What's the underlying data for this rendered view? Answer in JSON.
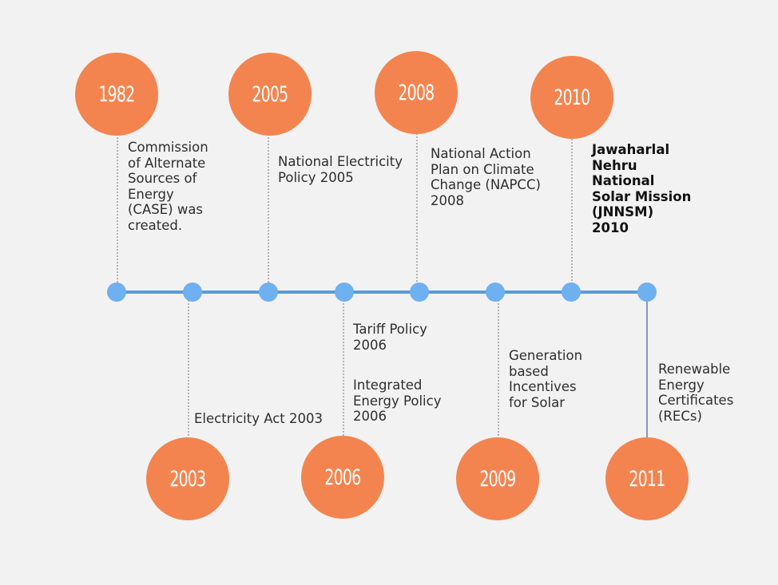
{
  "colors": {
    "circle": "#f4844f",
    "axis": "#5b9bd5",
    "node": "#6fb0f0",
    "connector": "#8a8a8a",
    "connector_solid": "#6a74a8"
  },
  "milestones": [
    {
      "year": "1982",
      "text": "Commission\nof Alternate\nSources of\nEnergy\n(CASE) was\ncreated."
    },
    {
      "year": "2003",
      "text": "Electricity Act 2003"
    },
    {
      "year": "2005",
      "text": "National Electricity\nPolicy 2005"
    },
    {
      "year": "2006",
      "text": "Tariff Policy\n2006",
      "text2": "Integrated\nEnergy Policy\n2006"
    },
    {
      "year": "2008",
      "text": "National Action\nPlan on Climate\nChange (NAPCC)\n2008"
    },
    {
      "year": "2009",
      "text": "Generation\nbased\nIncentives\nfor Solar"
    },
    {
      "year": "2010",
      "text": "Jawaharlal\nNehru\nNational\nSolar Mission\n(JNNSM)\n2010"
    },
    {
      "year": "2011",
      "text": "Renewable\nEnergy\nCertificates\n(RECs)"
    }
  ]
}
